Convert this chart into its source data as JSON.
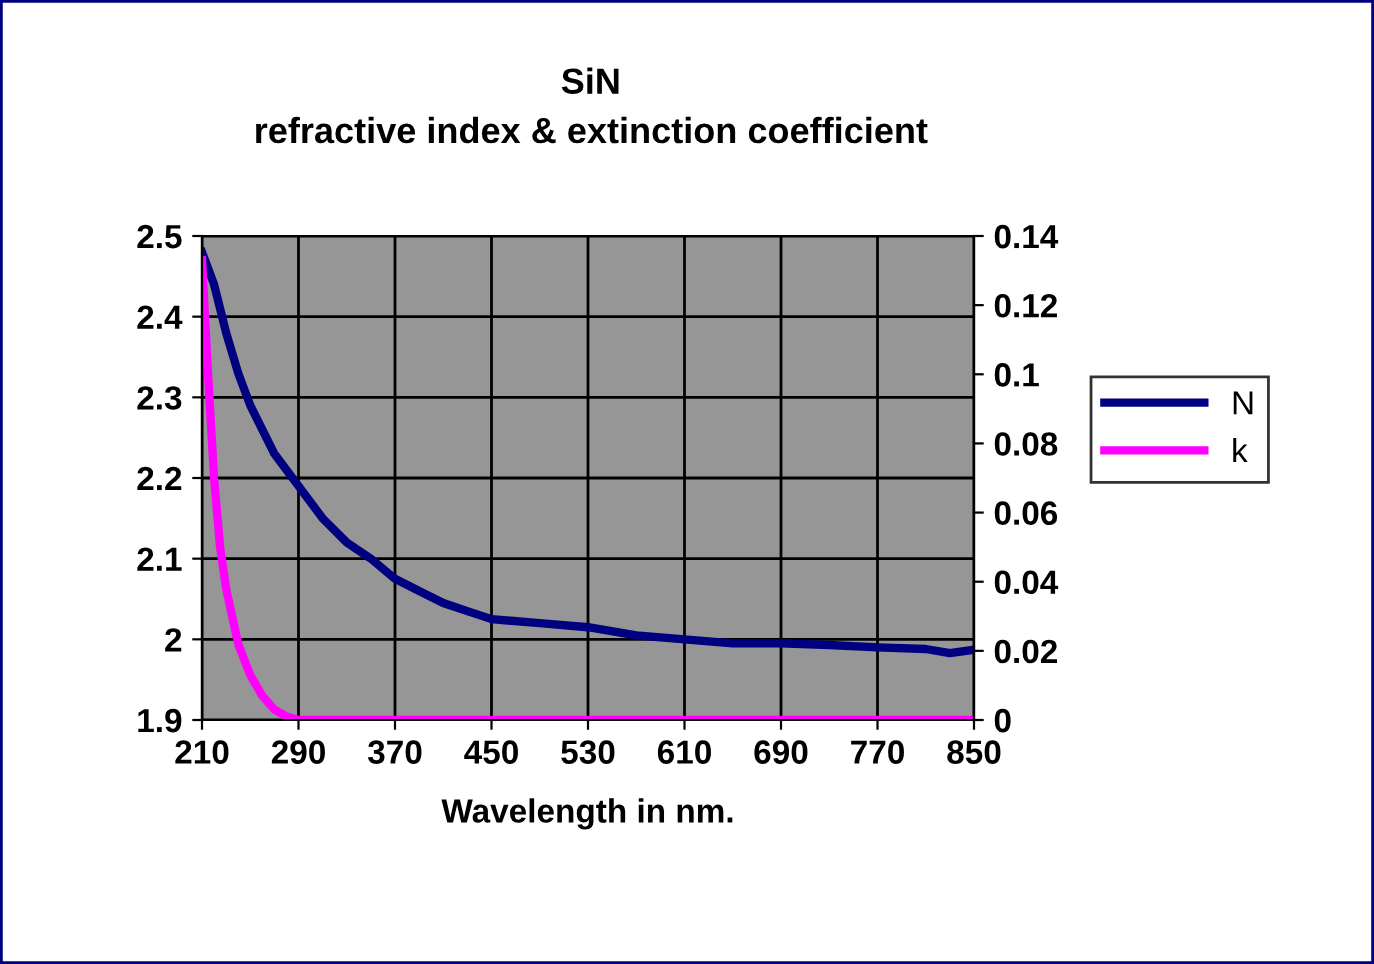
{
  "chart_data": {
    "type": "line",
    "title": "SiN\nrefractive index & extinction coefficient",
    "xlabel": "Wavelength in nm.",
    "xlim": [
      210,
      850
    ],
    "xticks": [
      210,
      290,
      370,
      450,
      530,
      610,
      690,
      770,
      850
    ],
    "ylim": [
      1.9,
      2.5
    ],
    "yticks": [
      1.9,
      2,
      2.1,
      2.2,
      2.3,
      2.4,
      2.5
    ],
    "y2lim": [
      0,
      0.14
    ],
    "y2ticks": [
      0,
      0.02,
      0.04,
      0.06,
      0.08,
      0.1,
      0.12,
      0.14
    ],
    "grid": true,
    "legend": "right",
    "marker": "none",
    "line_style": "solid",
    "series": [
      {
        "name": "N",
        "color": "#000080",
        "x": [
          210,
          220,
          230,
          240,
          250,
          260,
          270,
          290,
          310,
          330,
          350,
          370,
          390,
          410,
          430,
          450,
          490,
          530,
          570,
          610,
          650,
          690,
          730,
          770,
          810,
          830,
          850
        ],
        "values": [
          2.48,
          2.44,
          2.38,
          2.33,
          2.29,
          2.26,
          2.23,
          2.19,
          2.15,
          2.12,
          2.1,
          2.075,
          2.06,
          2.045,
          2.035,
          2.025,
          2.02,
          2.015,
          2.005,
          2.0,
          1.995,
          1.995,
          1.993,
          1.99,
          1.988,
          1.983,
          1.987
        ]
      },
      {
        "name": "k",
        "color": "#ff00ff",
        "axis": "y2",
        "x": [
          210,
          215,
          220,
          225,
          230,
          240,
          250,
          260,
          270,
          280,
          290,
          850
        ],
        "values": [
          0.133,
          0.1,
          0.07,
          0.05,
          0.038,
          0.022,
          0.013,
          0.007,
          0.003,
          0.001,
          0,
          0
        ]
      }
    ]
  }
}
